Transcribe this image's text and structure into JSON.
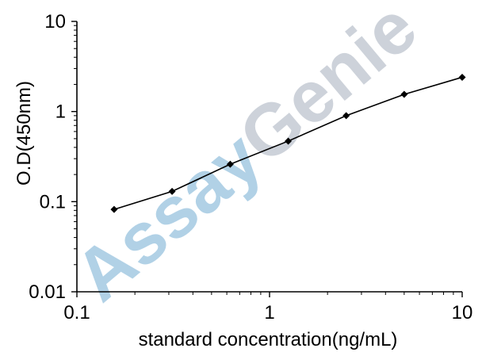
{
  "chart_data": {
    "type": "line",
    "title": "",
    "xlabel": "standard concentration(ng/mL)",
    "ylabel": "O.D(450nm)",
    "xscale": "log",
    "yscale": "log",
    "xlim": [
      0.1,
      10
    ],
    "ylim": [
      0.01,
      10
    ],
    "xticks": [
      "0.1",
      "1",
      "10"
    ],
    "yticks": [
      "0.01",
      "0.1",
      "1",
      "10"
    ],
    "grid": false,
    "series": [
      {
        "marker": "diamond",
        "color": "#000000",
        "x": [
          0.156,
          0.312,
          0.625,
          1.25,
          2.5,
          5,
          10
        ],
        "y": [
          0.082,
          0.13,
          0.26,
          0.47,
          0.9,
          1.55,
          2.4
        ]
      }
    ]
  },
  "watermark": {
    "text": "AssayGenie",
    "color_assay": "#a9cde4",
    "color_genie": "#c8ced6"
  }
}
